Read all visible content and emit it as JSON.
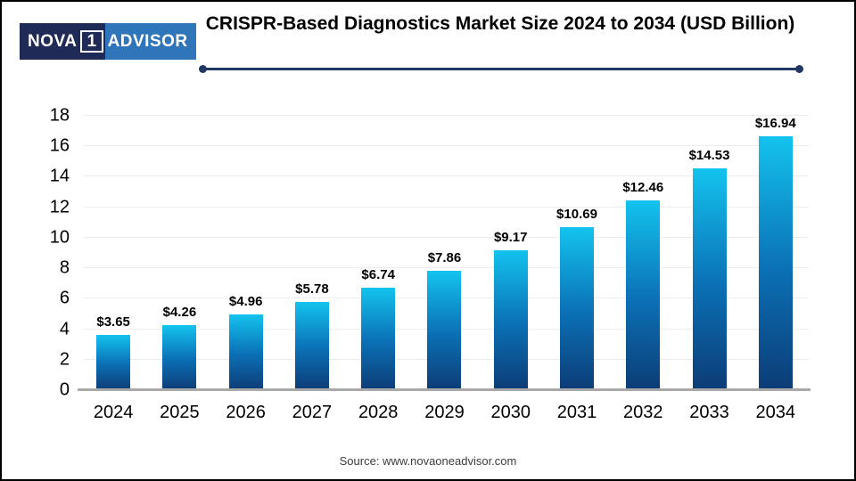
{
  "logo": {
    "part1": "NOVA",
    "part2": "1",
    "part3": "ADVISOR"
  },
  "header": {
    "title": "CRISPR-Based Diagnostics Market Size 2024 to 2034 (USD Billion)"
  },
  "footer": {
    "source": "Source: www.novaoneadvisor.com"
  },
  "colors": {
    "logo_navy": "#1f2b56",
    "logo_blue": "#2e75b9",
    "line_navy": "#203864",
    "axis_gray": "#a9a9a9",
    "grid_gray": "#ededed",
    "bar_top": "#13c3ee",
    "bar_mid": "#0b71b6",
    "bar_bottom": "#0c3c76"
  },
  "chart_data": {
    "type": "bar",
    "title": "CRISPR-Based Diagnostics Market Size 2024 to 2034 (USD Billion)",
    "categories": [
      "2024",
      "2025",
      "2026",
      "2027",
      "2028",
      "2029",
      "2030",
      "2031",
      "2032",
      "2033",
      "2034"
    ],
    "values": [
      3.65,
      4.26,
      4.96,
      5.78,
      6.74,
      7.86,
      9.17,
      10.69,
      12.46,
      14.53,
      16.94
    ],
    "value_labels": [
      "$3.65",
      "$4.26",
      "$4.96",
      "$5.78",
      "$6.74",
      "$7.86",
      "$9.17",
      "$10.69",
      "$12.46",
      "$14.53",
      "$16.94"
    ],
    "xlabel": "",
    "ylabel": "",
    "ylim": [
      0,
      18
    ],
    "yticks": [
      0,
      2,
      4,
      6,
      8,
      10,
      12,
      14,
      16,
      18
    ],
    "grid": true,
    "legend": false,
    "units": "USD Billion"
  }
}
